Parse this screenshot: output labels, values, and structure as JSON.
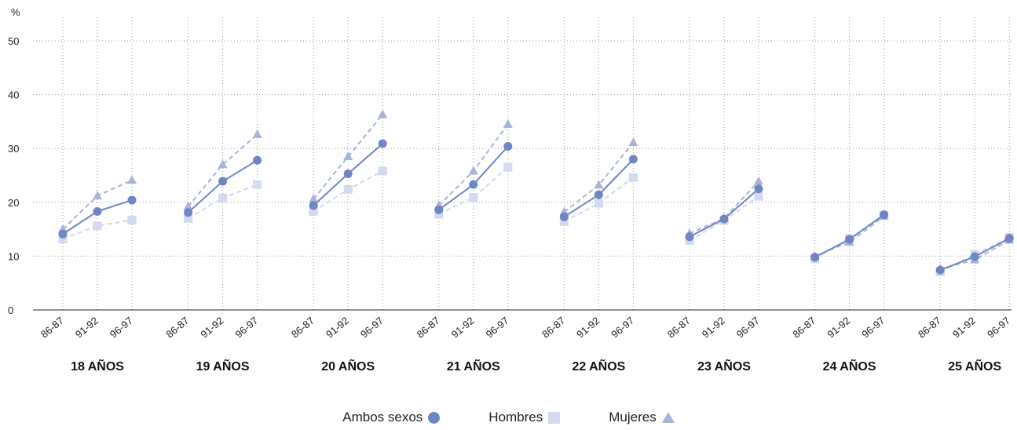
{
  "chart_data": {
    "type": "line",
    "unit_label": "%",
    "ylim": [
      0,
      50
    ],
    "yticks": [
      0,
      10,
      20,
      30,
      40,
      50
    ],
    "x_subcategories": [
      "86-87",
      "91-92",
      "96-97"
    ],
    "groups": [
      {
        "label": "18 AÑOS",
        "ambos": [
          14.1,
          18.3,
          20.4
        ],
        "hombres": [
          13.2,
          15.6,
          16.7
        ],
        "mujeres": [
          15.0,
          21.2,
          24.1
        ]
      },
      {
        "label": "19 AÑOS",
        "ambos": [
          18.1,
          23.9,
          27.8
        ],
        "hombres": [
          17.0,
          20.8,
          23.3
        ],
        "mujeres": [
          19.2,
          27.0,
          32.6
        ]
      },
      {
        "label": "20 AÑOS",
        "ambos": [
          19.4,
          25.3,
          30.9
        ],
        "hombres": [
          18.3,
          22.4,
          25.8
        ],
        "mujeres": [
          20.6,
          28.5,
          36.3
        ]
      },
      {
        "label": "21 AÑOS",
        "ambos": [
          18.6,
          23.3,
          30.4
        ],
        "hombres": [
          17.8,
          20.9,
          26.5
        ],
        "mujeres": [
          19.4,
          25.8,
          34.5
        ]
      },
      {
        "label": "22 AÑOS",
        "ambos": [
          17.3,
          21.4,
          28.0
        ],
        "hombres": [
          16.4,
          19.8,
          24.6
        ],
        "mujeres": [
          18.2,
          23.2,
          31.1
        ]
      },
      {
        "label": "23 AÑOS",
        "ambos": [
          13.6,
          16.9,
          22.5
        ],
        "hombres": [
          12.9,
          16.6,
          21.1
        ],
        "mujeres": [
          14.2,
          17.0,
          23.9
        ]
      },
      {
        "label": "24 AÑOS",
        "ambos": [
          9.8,
          13.1,
          17.7
        ],
        "hombres": [
          9.5,
          13.3,
          17.6
        ],
        "mujeres": [
          10.0,
          12.6,
          17.4
        ]
      },
      {
        "label": "25 AÑOS",
        "ambos": [
          7.4,
          9.9,
          13.3
        ],
        "hombres": [
          7.1,
          10.3,
          13.5
        ],
        "mujeres": [
          7.6,
          9.3,
          13.0
        ]
      }
    ],
    "series": [
      {
        "key": "ambos",
        "name": "Ambos sexos",
        "marker": "circle",
        "line": "solid",
        "color": "#6f86c4"
      },
      {
        "key": "hombres",
        "name": "Hombres",
        "marker": "square",
        "line": "dashed",
        "color": "#d3d9ee"
      },
      {
        "key": "mujeres",
        "name": "Mujeres",
        "marker": "triangle",
        "line": "dashed",
        "color": "#a9b3da"
      }
    ],
    "grid": "dotted",
    "legend_position": "bottom-center"
  }
}
